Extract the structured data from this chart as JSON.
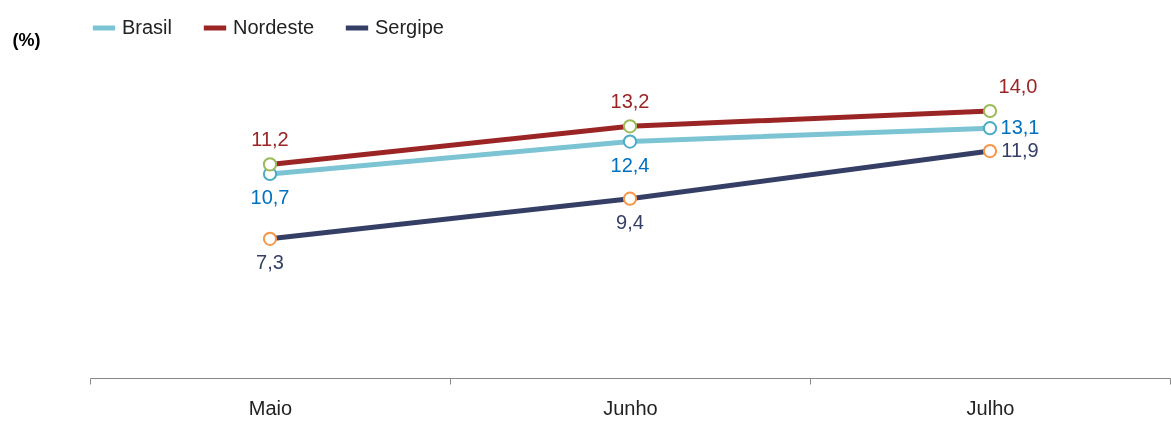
{
  "chart_data": {
    "type": "line",
    "ylabel": "(%)",
    "categories": [
      "Maio",
      "Junho",
      "Julho"
    ],
    "tick_labels": "x",
    "legend": "top",
    "marker": "circle",
    "grid": false,
    "series": [
      {
        "name": "Brasil",
        "color": "#7cc4d4",
        "values": [
          10.7,
          12.4,
          13.1
        ],
        "value_labels": [
          "10,7",
          "12,4",
          "13,1"
        ]
      },
      {
        "name": "Nordeste",
        "color": "#9b2424",
        "values": [
          11.2,
          13.2,
          14.0
        ],
        "value_labels": [
          "11,2",
          "13,2",
          "14,0"
        ]
      },
      {
        "name": "Sergipe",
        "color": "#353f66",
        "values": [
          7.3,
          9.4,
          11.9
        ],
        "value_labels": [
          "7,3",
          "9,4",
          "11,9"
        ]
      }
    ]
  }
}
